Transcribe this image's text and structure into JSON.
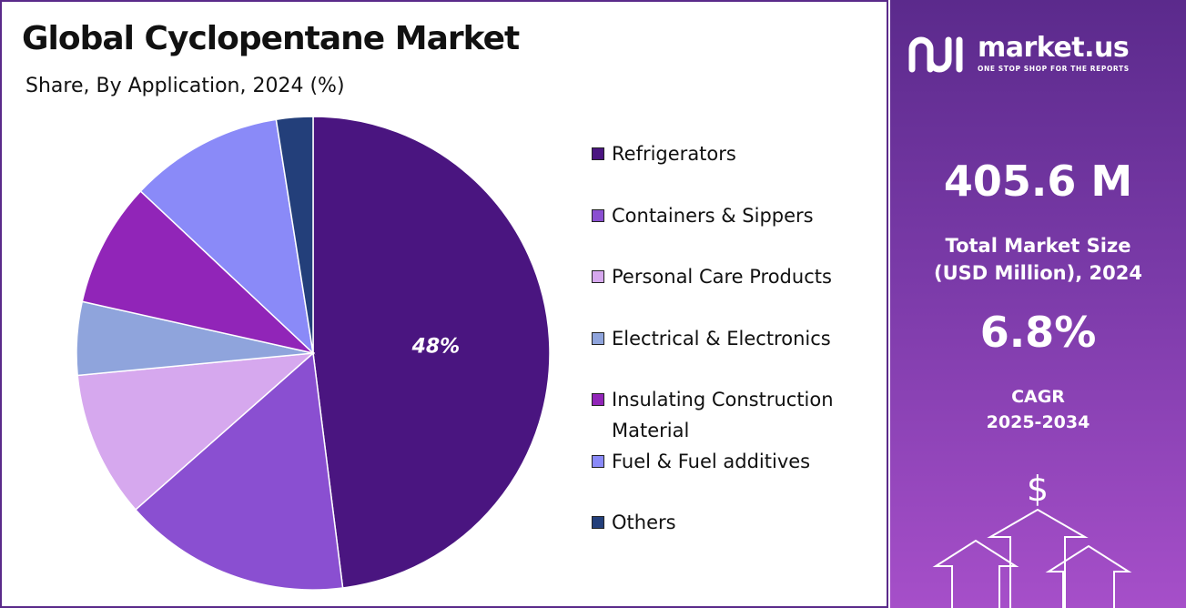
{
  "title": "Global Cyclopentane Market",
  "subtitle": "Share, By Application, 2024 (%)",
  "chart_data": {
    "type": "pie",
    "start_angle_deg": 0,
    "direction": "clockwise",
    "slices": [
      {
        "label": "Refrigerators",
        "value": 48,
        "color": "#4a1580",
        "show_label": true,
        "data_label": "48%"
      },
      {
        "label": "Containers & Sippers",
        "value": 15.5,
        "color": "#8a4fd1"
      },
      {
        "label": "Personal Care Products",
        "value": 10,
        "color": "#d6a8ee"
      },
      {
        "label": "Electrical & Electronics",
        "value": 5,
        "color": "#8fa4dc"
      },
      {
        "label": "Insulating Construction Material",
        "value": 8.5,
        "color": "#9125b8"
      },
      {
        "label": "Fuel & Fuel additives",
        "value": 10.5,
        "color": "#8a8af8"
      },
      {
        "label": "Others",
        "value": 2.5,
        "color": "#233f7a"
      }
    ]
  },
  "brand": {
    "name": "market.us",
    "tagline": "ONE STOP SHOP FOR THE REPORTS"
  },
  "stats": {
    "market_size": "405.6 M",
    "market_size_label_1": "Total Market Size",
    "market_size_label_2": "(USD Million), 2024",
    "cagr": "6.8%",
    "cagr_label_1": "CAGR",
    "cagr_label_2": "2025-2034"
  },
  "decor": {
    "dollar_symbol": "$"
  },
  "colors": {
    "panel_top": "#5b2a8c",
    "panel_bottom": "#a64fc9",
    "border": "#5a2a8a"
  }
}
